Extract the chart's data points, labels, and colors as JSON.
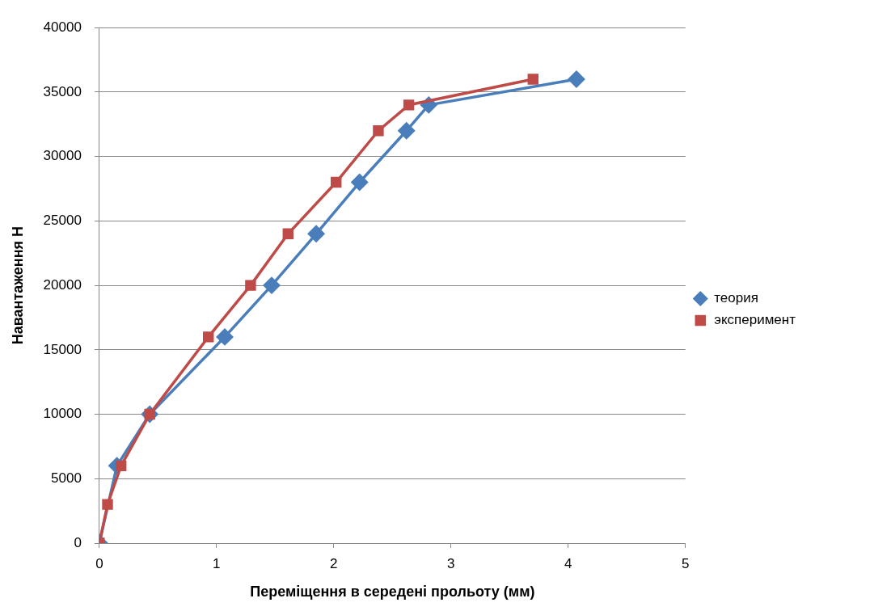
{
  "chart_data": {
    "type": "line",
    "xlabel": "Переміщення в середені прольоту (мм)",
    "ylabel": "Навантаження Н",
    "xlim": [
      0,
      5
    ],
    "xticks": [
      0,
      1,
      2,
      3,
      4,
      5
    ],
    "ylim": [
      0,
      40000
    ],
    "yticks": [
      0,
      5000,
      10000,
      15000,
      20000,
      25000,
      30000,
      35000,
      40000
    ],
    "grid": "y",
    "legend": "right",
    "series": [
      {
        "name": "теория",
        "color": "#4a7ebb",
        "marker": "diamond",
        "x": [
          0,
          0.15,
          0.43,
          1.07,
          1.47,
          1.85,
          2.22,
          2.62,
          2.81,
          4.07
        ],
        "values": [
          0,
          6000,
          10000,
          16000,
          20000,
          24000,
          28000,
          32000,
          34000,
          36000
        ]
      },
      {
        "name": "эксперимент",
        "color": "#be4b48",
        "marker": "square",
        "x": [
          0,
          0.07,
          0.185,
          0.43,
          0.93,
          1.29,
          1.61,
          2.02,
          2.38,
          2.64,
          3.7
        ],
        "values": [
          0,
          3000,
          6000,
          10000,
          16000,
          20000,
          24000,
          28000,
          32000,
          34000,
          36000
        ]
      }
    ]
  }
}
